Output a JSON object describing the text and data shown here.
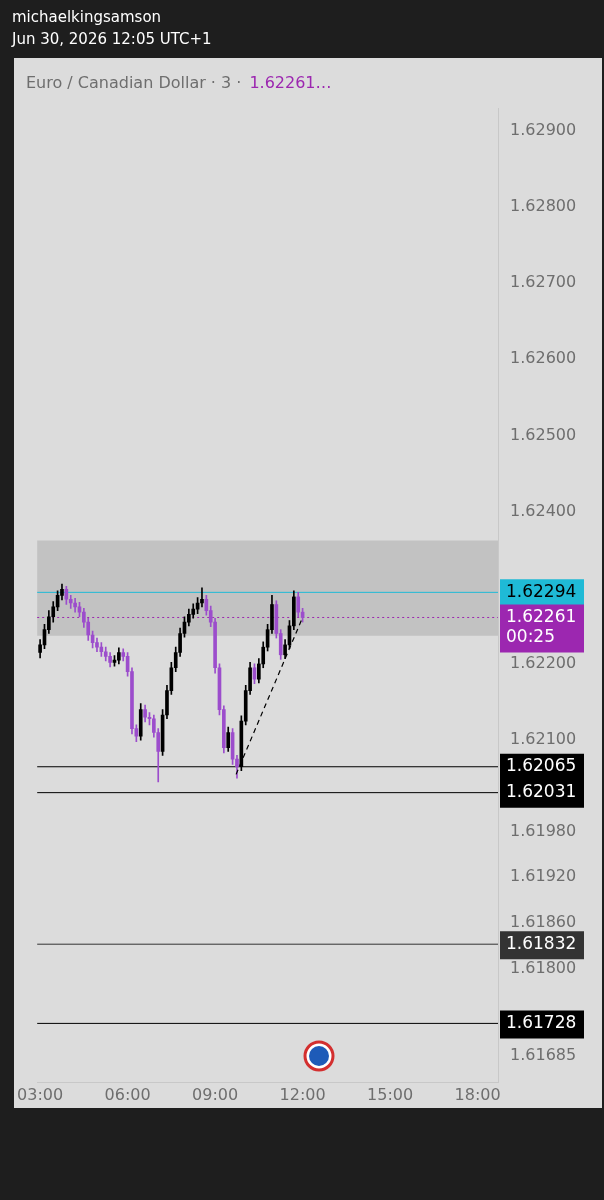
{
  "chart_data": {
    "type": "candlestick",
    "title": "Euro / Canadian Dollar · 3 ·",
    "subtitle": "1.62261…",
    "annotations": [
      "michaelkingsamson",
      "Jun 30, 2026 12:05 UTC+1"
    ],
    "x": [
      3,
      3.15,
      3.3,
      3.45,
      3.6,
      3.75,
      3.9,
      4.05,
      4.2,
      4.35,
      4.5,
      4.65,
      4.8,
      4.95,
      5.1,
      5.25,
      5.4,
      5.55,
      5.7,
      5.85,
      6,
      6.15,
      6.3,
      6.45,
      6.6,
      6.75,
      6.9,
      7.05,
      7.2,
      7.35,
      7.5,
      7.65,
      7.8,
      7.95,
      8.1,
      8.25,
      8.4,
      8.55,
      8.7,
      8.85,
      9,
      9.15,
      9.3,
      9.45,
      9.6,
      9.75,
      9.9,
      10.05,
      10.2,
      10.35,
      10.5,
      10.65,
      10.8,
      10.95,
      11.1,
      11.25,
      11.4,
      11.55,
      11.7,
      11.85,
      12
    ],
    "ohlc": [
      [
        1.62215,
        1.62232,
        1.62208,
        1.62225
      ],
      [
        1.62225,
        1.62252,
        1.6222,
        1.62245
      ],
      [
        1.62245,
        1.6227,
        1.6224,
        1.62262
      ],
      [
        1.62262,
        1.62282,
        1.62255,
        1.62275
      ],
      [
        1.62275,
        1.62296,
        1.6227,
        1.6229
      ],
      [
        1.6229,
        1.62305,
        1.62284,
        1.62298
      ],
      [
        1.62298,
        1.62302,
        1.62278,
        1.62285
      ],
      [
        1.62285,
        1.6229,
        1.62273,
        1.6228
      ],
      [
        1.6228,
        1.62286,
        1.62268,
        1.62275
      ],
      [
        1.62275,
        1.62281,
        1.62262,
        1.62268
      ],
      [
        1.62268,
        1.62273,
        1.62248,
        1.62255
      ],
      [
        1.62255,
        1.6226,
        1.62231,
        1.62238
      ],
      [
        1.62238,
        1.62243,
        1.62221,
        1.62228
      ],
      [
        1.62228,
        1.62234,
        1.62216,
        1.62222
      ],
      [
        1.62222,
        1.62228,
        1.6221,
        1.62216
      ],
      [
        1.62216,
        1.62222,
        1.62204,
        1.6221
      ],
      [
        1.6221,
        1.62215,
        1.62196,
        1.62202
      ],
      [
        1.62202,
        1.62211,
        1.62197,
        1.62205
      ],
      [
        1.62205,
        1.62221,
        1.622,
        1.62215
      ],
      [
        1.62215,
        1.6222,
        1.62204,
        1.6221
      ],
      [
        1.6221,
        1.62215,
        1.62184,
        1.6219
      ],
      [
        1.6219,
        1.62195,
        1.62108,
        1.62115
      ],
      [
        1.62115,
        1.6212,
        1.62098,
        1.62105
      ],
      [
        1.62105,
        1.62148,
        1.621,
        1.6214
      ],
      [
        1.6214,
        1.62146,
        1.62124,
        1.6213
      ],
      [
        1.6213,
        1.62136,
        1.6212,
        1.62128
      ],
      [
        1.62128,
        1.62133,
        1.62104,
        1.6211
      ],
      [
        1.6211,
        1.62115,
        1.62045,
        1.62085
      ],
      [
        1.62085,
        1.6214,
        1.6208,
        1.62133
      ],
      [
        1.62133,
        1.62172,
        1.62128,
        1.62165
      ],
      [
        1.62165,
        1.62202,
        1.6216,
        1.62195
      ],
      [
        1.62195,
        1.62222,
        1.6219,
        1.62215
      ],
      [
        1.62215,
        1.62247,
        1.6221,
        1.6224
      ],
      [
        1.6224,
        1.62262,
        1.62235,
        1.62255
      ],
      [
        1.62255,
        1.62272,
        1.6225,
        1.62265
      ],
      [
        1.62265,
        1.62279,
        1.6226,
        1.62272
      ],
      [
        1.62272,
        1.62287,
        1.62266,
        1.6228
      ],
      [
        1.6228,
        1.623,
        1.62275,
        1.62285
      ],
      [
        1.62285,
        1.6229,
        1.62264,
        1.6227
      ],
      [
        1.6227,
        1.62276,
        1.62249,
        1.62255
      ],
      [
        1.62255,
        1.6226,
        1.62188,
        1.62195
      ],
      [
        1.62195,
        1.622,
        1.62133,
        1.6214
      ],
      [
        1.6214,
        1.62145,
        1.62083,
        1.6209
      ],
      [
        1.6209,
        1.62117,
        1.62085,
        1.6211
      ],
      [
        1.6211,
        1.62115,
        1.62068,
        1.62075
      ],
      [
        1.62075,
        1.6208,
        1.6205,
        1.62065
      ],
      [
        1.62065,
        1.62132,
        1.6206,
        1.62125
      ],
      [
        1.62125,
        1.62172,
        1.6212,
        1.62165
      ],
      [
        1.62165,
        1.62202,
        1.6216,
        1.62195
      ],
      [
        1.62195,
        1.622,
        1.62174,
        1.6218
      ],
      [
        1.6218,
        1.62207,
        1.62175,
        1.622
      ],
      [
        1.622,
        1.62229,
        1.62195,
        1.62222
      ],
      [
        1.62222,
        1.62252,
        1.62217,
        1.62245
      ],
      [
        1.62245,
        1.6229,
        1.6224,
        1.62278
      ],
      [
        1.62278,
        1.62283,
        1.62234,
        1.6224
      ],
      [
        1.6224,
        1.62245,
        1.62206,
        1.62212
      ],
      [
        1.62212,
        1.62232,
        1.62207,
        1.62225
      ],
      [
        1.62225,
        1.62257,
        1.6222,
        1.6225
      ],
      [
        1.6225,
        1.62296,
        1.62245,
        1.62288
      ],
      [
        1.62288,
        1.62294,
        1.62262,
        1.62268
      ],
      [
        1.62268,
        1.62273,
        1.62255,
        1.62261
      ]
    ],
    "colors": [
      "#000000",
      "#000000",
      "#000000",
      "#000000",
      "#000000",
      "#000000",
      "#9c4dcc",
      "#9c4dcc",
      "#9c4dcc",
      "#9c4dcc",
      "#9c4dcc",
      "#9c4dcc",
      "#9c4dcc",
      "#9c4dcc",
      "#9c4dcc",
      "#9c4dcc",
      "#9c4dcc",
      "#000000",
      "#000000",
      "#9c4dcc",
      "#9c4dcc",
      "#9c4dcc",
      "#9c4dcc",
      "#000000",
      "#9c4dcc",
      "#9c4dcc",
      "#9c4dcc",
      "#9c4dcc",
      "#000000",
      "#000000",
      "#000000",
      "#000000",
      "#000000",
      "#000000",
      "#000000",
      "#000000",
      "#000000",
      "#000000",
      "#9c4dcc",
      "#9c4dcc",
      "#9c4dcc",
      "#9c4dcc",
      "#9c4dcc",
      "#000000",
      "#9c4dcc",
      "#9c4dcc",
      "#000000",
      "#000000",
      "#000000",
      "#9c4dcc",
      "#000000",
      "#000000",
      "#000000",
      "#000000",
      "#9c4dcc",
      "#9c4dcc",
      "#000000",
      "#000000",
      "#000000",
      "#9c4dcc",
      "#9c4dcc"
    ],
    "series": [
      {
        "type": "line",
        "x": [
          9.72,
          12.0
        ],
        "values": [
          1.62055,
          1.62261
        ],
        "color": "#000000",
        "line_style": "dashed"
      }
    ],
    "xlim": [
      2.9,
      18.7
    ],
    "xticks": [
      {
        "value": 3,
        "label": "03:00"
      },
      {
        "value": 6,
        "label": "06:00"
      },
      {
        "value": 9,
        "label": "09:00"
      },
      {
        "value": 12,
        "label": "12:00"
      },
      {
        "value": 15,
        "label": "15:00"
      },
      {
        "value": 18,
        "label": "18:00"
      }
    ],
    "ylim": [
      1.6165,
      1.6293
    ],
    "yticks": [
      {
        "value": 1.629,
        "label": "1.62900"
      },
      {
        "value": 1.628,
        "label": "1.62800"
      },
      {
        "value": 1.627,
        "label": "1.62700"
      },
      {
        "value": 1.626,
        "label": "1.62600"
      },
      {
        "value": 1.625,
        "label": "1.62500"
      },
      {
        "value": 1.624,
        "label": "1.62400"
      },
      {
        "value": 1.622,
        "label": "1.62200"
      },
      {
        "value": 1.621,
        "label": "1.62100"
      },
      {
        "value": 1.6198,
        "label": "1.61980"
      },
      {
        "value": 1.6192,
        "label": "1.61920"
      },
      {
        "value": 1.6186,
        "label": "1.61860"
      },
      {
        "value": 1.618,
        "label": "1.61800"
      },
      {
        "value": 1.61685,
        "label": "1.61685"
      }
    ],
    "bands": [
      {
        "axis": "y",
        "from": 1.62237,
        "to": 1.62362,
        "color": "#c2c2c2"
      }
    ],
    "ref_lines": [
      {
        "axis": "y",
        "value": 1.62294,
        "label": "1.62294",
        "color": "#1fbad6"
      },
      {
        "axis": "y",
        "value": 1.62261,
        "label": "1.62261\n00:25",
        "color": "#9c27b0",
        "line_style": "dotted"
      },
      {
        "axis": "y",
        "value": 1.62065,
        "label": "1.62065",
        "color": "#000000"
      },
      {
        "axis": "y",
        "value": 1.62031,
        "label": "1.62031",
        "color": "#000000"
      },
      {
        "axis": "y",
        "value": 1.61832,
        "label": "1.61832",
        "color": "#333333"
      },
      {
        "axis": "y",
        "value": 1.61728,
        "label": "1.61728",
        "color": "#000000"
      }
    ],
    "grid": false,
    "legend": false
  }
}
